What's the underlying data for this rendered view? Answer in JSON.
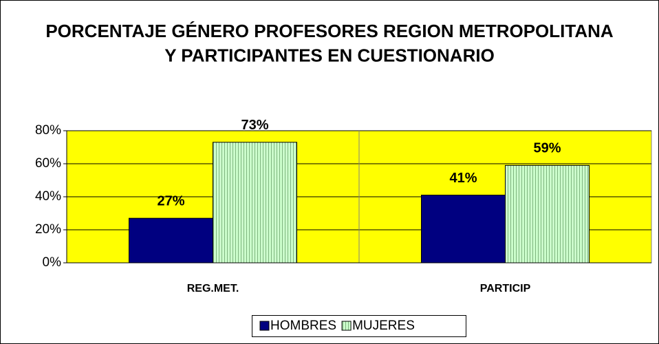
{
  "chart_data": {
    "type": "bar",
    "title": "PORCENTAJE GÉNERO PROFESORES REGION METROPOLITANA Y PARTICIPANTES EN CUESTIONARIO",
    "categories": [
      "REG.MET.",
      "PARTICIP"
    ],
    "series": [
      {
        "name": "HOMBRES",
        "color": "#000080",
        "values": [
          27,
          41
        ],
        "value_labels": [
          "27%",
          "41%"
        ]
      },
      {
        "name": "MUJERES",
        "color": "#ccffcc",
        "pattern": "vertical-stripes",
        "values": [
          73,
          59
        ],
        "value_labels": [
          "73%",
          "59%"
        ]
      }
    ],
    "ylim": [
      0,
      80
    ],
    "yticks": [
      {
        "value": 0,
        "label": "0%"
      },
      {
        "value": 20,
        "label": "20%"
      },
      {
        "value": 40,
        "label": "40%"
      },
      {
        "value": 60,
        "label": "60%"
      },
      {
        "value": 80,
        "label": "80%"
      }
    ],
    "grid": true,
    "plot_background": "#ffff00",
    "legend": "bottom"
  }
}
